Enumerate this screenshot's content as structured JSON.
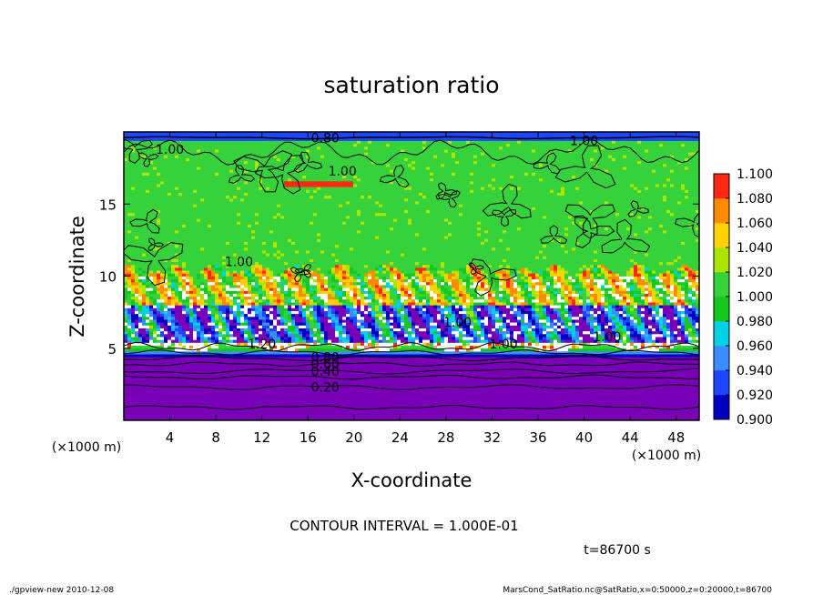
{
  "chart_data": {
    "type": "heatmap",
    "title": "saturation ratio",
    "xlabel": "X-coordinate",
    "ylabel": "Z-coordinate",
    "x_unit": "(×1000 m)",
    "y_unit": "(×1000 m)",
    "xlim": [
      0,
      50
    ],
    "ylim": [
      0,
      20
    ],
    "x_ticks": [
      4,
      8,
      12,
      16,
      20,
      24,
      28,
      32,
      36,
      40,
      44,
      48
    ],
    "y_ticks": [
      5,
      10,
      15
    ],
    "colorbar": {
      "levels": [
        "0.900",
        "0.920",
        "0.940",
        "0.960",
        "0.980",
        "1.000",
        "1.020",
        "1.040",
        "1.060",
        "1.080",
        "1.100"
      ],
      "colors": [
        "#7a00b8",
        "#0000c0",
        "#1e46ff",
        "#3c8cff",
        "#00d2e6",
        "#14c81e",
        "#36d23c",
        "#aae600",
        "#ffd200",
        "#ff8c00",
        "#ff2814",
        "#ff8c8c"
      ]
    },
    "contour_labels": [
      {
        "text": "1.00",
        "x": 4.0,
        "z": 18.8
      },
      {
        "text": "1.00",
        "x": 19.0,
        "z": 17.3
      },
      {
        "text": "1.00",
        "x": 40.0,
        "z": 19.4
      },
      {
        "text": "1.00",
        "x": 10.0,
        "z": 11.0
      },
      {
        "text": "1.00",
        "x": 29.0,
        "z": 6.8
      },
      {
        "text": "1.00",
        "x": 33.0,
        "z": 5.3
      },
      {
        "text": "1.00",
        "x": 42.0,
        "z": 5.8
      },
      {
        "text": "1.20",
        "x": 12.0,
        "z": 5.3
      },
      {
        "text": "0.80",
        "x": 17.5,
        "z": 19.6
      },
      {
        "text": "0.80",
        "x": 17.5,
        "z": 4.4
      },
      {
        "text": "0.60",
        "x": 17.5,
        "z": 3.9
      },
      {
        "text": "0.40",
        "x": 17.5,
        "z": 3.4
      },
      {
        "text": "0.20",
        "x": 17.5,
        "z": 2.3
      }
    ],
    "contour_interval_text": "CONTOUR INTERVAL = 1.000E-01",
    "time_text": "t=86700 s"
  },
  "footer": {
    "left": "./gpview-new  2010-12-08",
    "right": "MarsCond_SatRatio.nc@SatRatio,x=0:50000,z=0:20000,t=86700"
  }
}
